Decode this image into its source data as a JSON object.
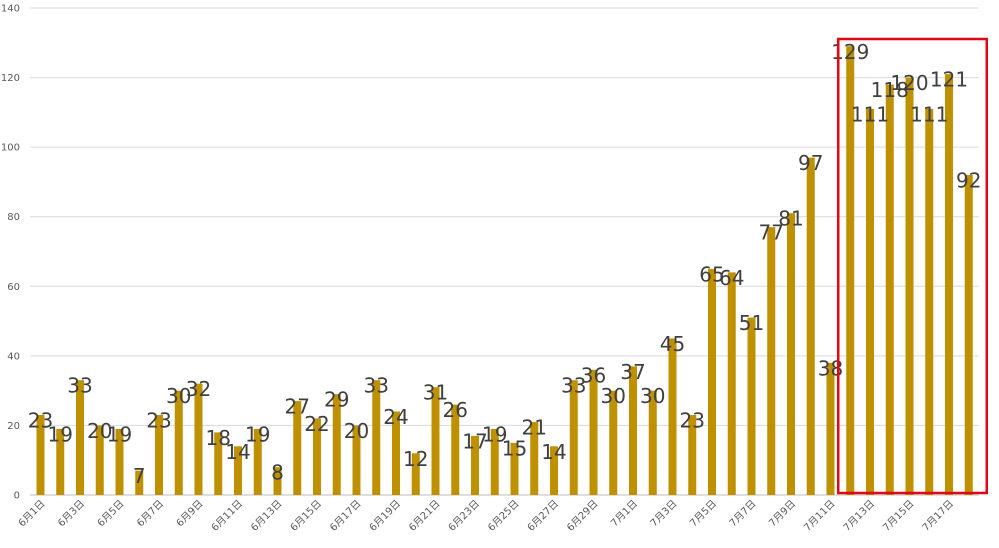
{
  "chart_data": {
    "type": "bar",
    "title": "",
    "xlabel": "",
    "ylabel": "",
    "ylim": [
      0,
      140
    ],
    "yticks": [
      0,
      20,
      40,
      60,
      80,
      100,
      120,
      140
    ],
    "grid": true,
    "legend": "none",
    "bar_color": "#bf9000",
    "highlight_color": "#e30613",
    "highlight_categories": [
      "7月12日",
      "7月18日"
    ],
    "categories": [
      "6月1日",
      "6月2日",
      "6月3日",
      "6月4日",
      "6月5日",
      "6月6日",
      "6月7日",
      "6月8日",
      "6月9日",
      "6月10日",
      "6月11日",
      "6月12日",
      "6月13日",
      "6月14日",
      "6月15日",
      "6月16日",
      "6月17日",
      "6月18日",
      "6月19日",
      "6月20日",
      "6月21日",
      "6月22日",
      "6月23日",
      "6月24日",
      "6月25日",
      "6月26日",
      "6月27日",
      "6月28日",
      "6月29日",
      "6月30日",
      "7月1日",
      "7月2日",
      "7月3日",
      "7月4日",
      "7月5日",
      "7月6日",
      "7月7日",
      "7月8日",
      "7月9日",
      "7月10日",
      "7月11日",
      "7月12日",
      "7月13日",
      "7月14日",
      "7月15日",
      "7月16日",
      "7月17日",
      "7月18日"
    ],
    "values": [
      23,
      19,
      33,
      20,
      19,
      7,
      23,
      30,
      32,
      18,
      14,
      19,
      8,
      27,
      22,
      29,
      20,
      33,
      24,
      12,
      31,
      26,
      17,
      19,
      15,
      21,
      14,
      33,
      36,
      30,
      37,
      30,
      45,
      23,
      65,
      64,
      51,
      77,
      81,
      97,
      38,
      129,
      111,
      118,
      120,
      111,
      121,
      92
    ],
    "x_tick_labels": [
      "6月1日",
      "6月3日",
      "6月5日",
      "6月7日",
      "6月9日",
      "6月11日",
      "6月13日",
      "6月15日",
      "6月17日",
      "6月19日",
      "6月21日",
      "6月23日",
      "6月25日",
      "6月27日",
      "6月29日",
      "7月1日",
      "7月3日",
      "7月5日",
      "7月7日",
      "7月9日",
      "7月11日",
      "7月13日",
      "7月15日",
      "7月17日"
    ]
  }
}
